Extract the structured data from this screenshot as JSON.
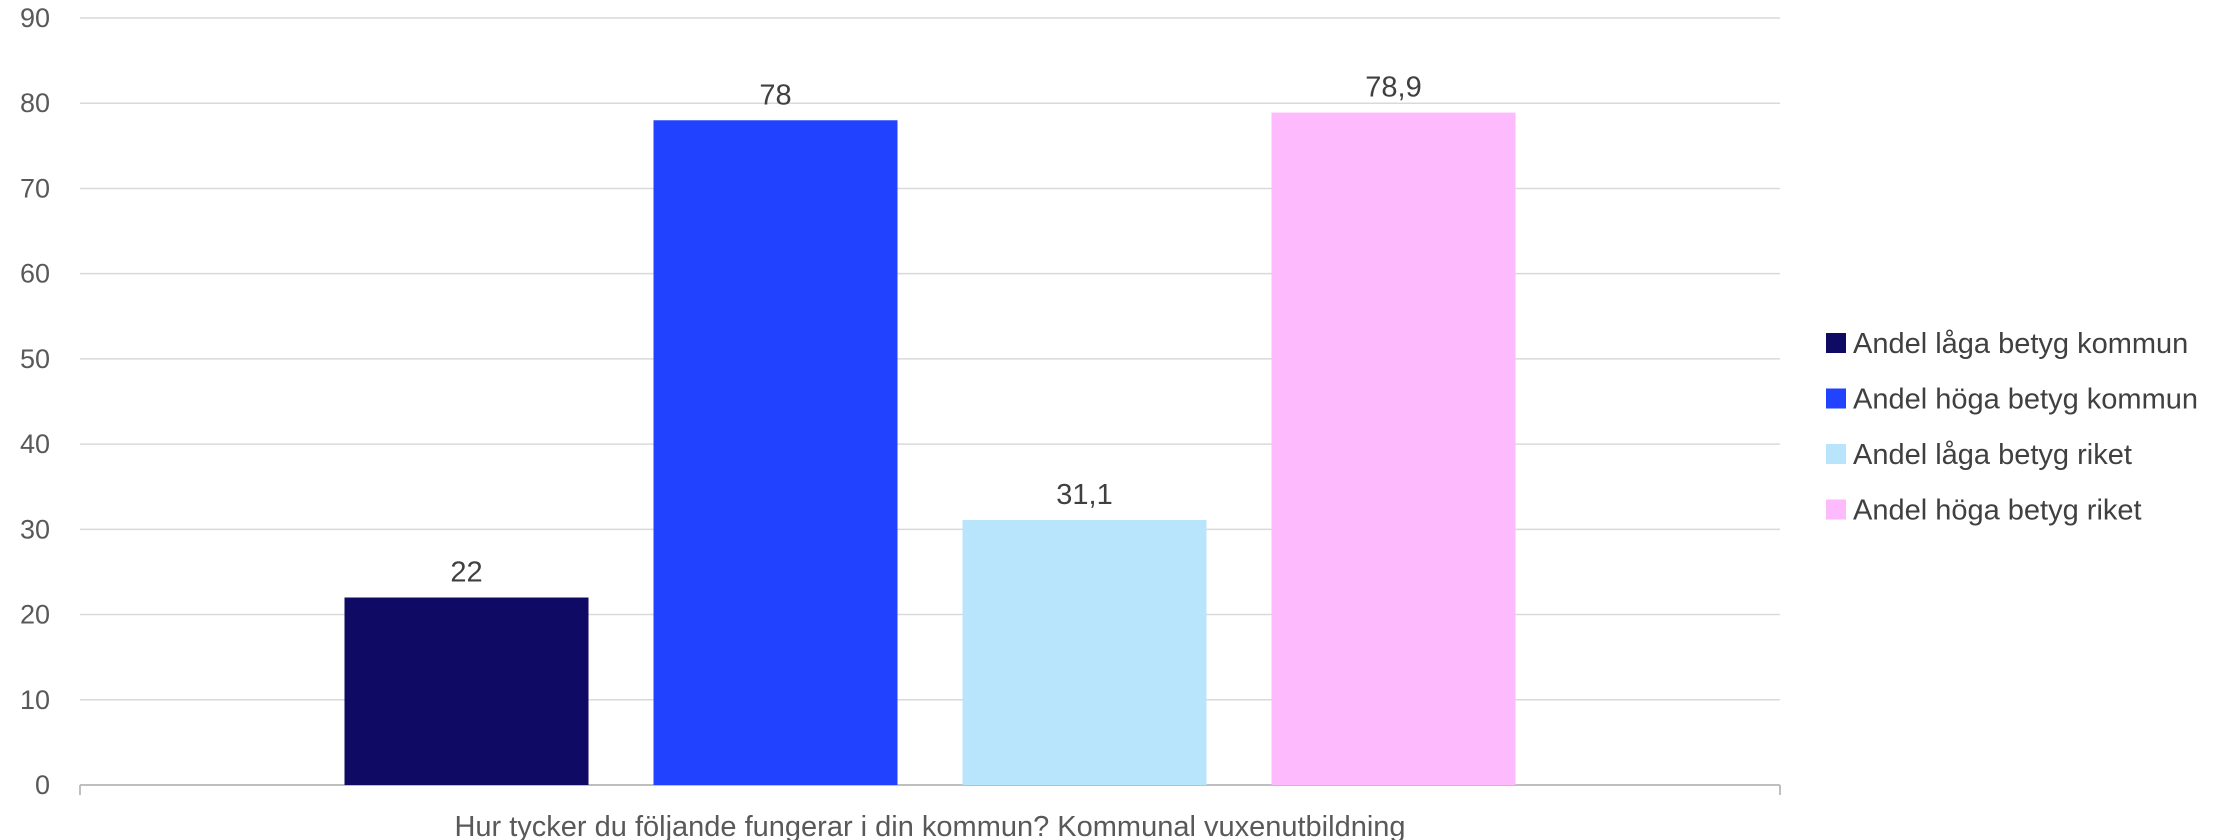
{
  "chart_data": {
    "type": "bar",
    "categories": [
      "Hur tycker du följande fungerar i din kommun? Kommunal vuxenutbildning"
    ],
    "series": [
      {
        "name": "Andel låga betyg kommun",
        "values": [
          22
        ],
        "label": "22",
        "color": "#0f0a63"
      },
      {
        "name": "Andel höga betyg kommun",
        "values": [
          78
        ],
        "label": "78",
        "color": "#2142ff"
      },
      {
        "name": "Andel låga betyg riket",
        "values": [
          31.1
        ],
        "label": "31,1",
        "color": "#b8e5fb"
      },
      {
        "name": "Andel höga betyg riket",
        "values": [
          78.9
        ],
        "label": "78,9",
        "color": "#fdbafd"
      }
    ],
    "ylim": [
      0,
      90
    ],
    "yticks": [
      0,
      10,
      20,
      30,
      40,
      50,
      60,
      70,
      80,
      90
    ],
    "grid": true,
    "legend_position": "right"
  }
}
